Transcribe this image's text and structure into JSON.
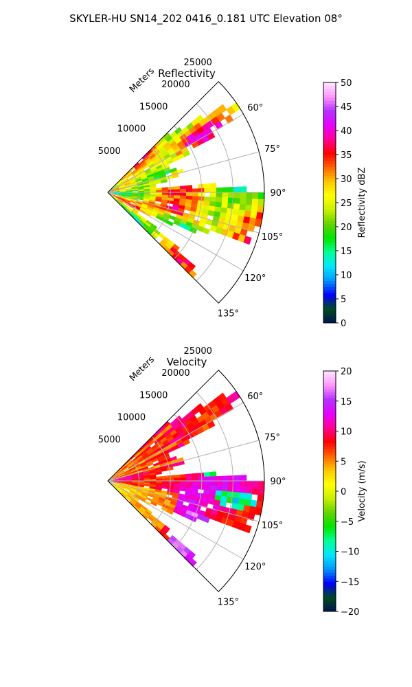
{
  "figure": {
    "suptitle": "SKYLER-HU  SN14_202  0416_0.181 UTC Elevation 08°"
  },
  "chart_data": [
    {
      "type": "heatmap",
      "subtype": "polar-sector-radar",
      "title": "Reflectivity",
      "radial_axis_label": "Meters",
      "radial_ticks": [
        "5000",
        "10000",
        "15000",
        "20000",
        "25000"
      ],
      "radial_tick_values": [
        5000,
        10000,
        15000,
        20000,
        25000
      ],
      "radial_max": 25000,
      "angular_ticks": [
        "60°",
        "75°",
        "90°",
        "105°",
        "120°",
        "135°"
      ],
      "angular_tick_values": [
        60,
        75,
        90,
        105,
        120,
        135
      ],
      "theta_range": [
        45,
        135
      ],
      "grid": true,
      "colorbar": {
        "label": "Reflectivity dBZ",
        "range": [
          0,
          50
        ],
        "ticks": [
          "0",
          "5",
          "10",
          "15",
          "20",
          "25",
          "30",
          "35",
          "40",
          "45",
          "50"
        ],
        "tick_values": [
          0,
          5,
          10,
          15,
          20,
          25,
          30,
          35,
          40,
          45,
          50
        ],
        "colors": [
          "#001450",
          "#004a20",
          "#0000ff",
          "#0096ff",
          "#00e6ff",
          "#00ff96",
          "#00e600",
          "#64d200",
          "#c8f000",
          "#ffff00",
          "#ffc800",
          "#ff6400",
          "#ff0000",
          "#ff0096",
          "#e600ff",
          "#b432ff",
          "#ff96ff",
          "#ffe6ff"
        ]
      }
    },
    {
      "type": "heatmap",
      "subtype": "polar-sector-radar",
      "title": "Velocity",
      "radial_axis_label": "Meters",
      "radial_ticks": [
        "5000",
        "10000",
        "15000",
        "20000",
        "25000"
      ],
      "radial_tick_values": [
        5000,
        10000,
        15000,
        20000,
        25000
      ],
      "radial_max": 25000,
      "angular_ticks": [
        "60°",
        "75°",
        "90°",
        "105°",
        "120°",
        "135°"
      ],
      "angular_tick_values": [
        60,
        75,
        90,
        105,
        120,
        135
      ],
      "theta_range": [
        45,
        135
      ],
      "grid": true,
      "colorbar": {
        "label": "Velocity (m/s)",
        "range": [
          -20,
          20
        ],
        "ticks": [
          "−20",
          "−15",
          "−10",
          "−5",
          "0",
          "5",
          "10",
          "15",
          "20"
        ],
        "tick_values": [
          -20,
          -15,
          -10,
          -5,
          0,
          5,
          10,
          15,
          20
        ],
        "colors": [
          "#001450",
          "#004a20",
          "#0000ff",
          "#0096ff",
          "#00e6ff",
          "#00ff96",
          "#00e600",
          "#64d200",
          "#c8f000",
          "#ffff00",
          "#ffc800",
          "#ff6400",
          "#ff0000",
          "#ff0096",
          "#e600ff",
          "#b432ff",
          "#ff96ff",
          "#ffe6ff"
        ]
      }
    }
  ]
}
